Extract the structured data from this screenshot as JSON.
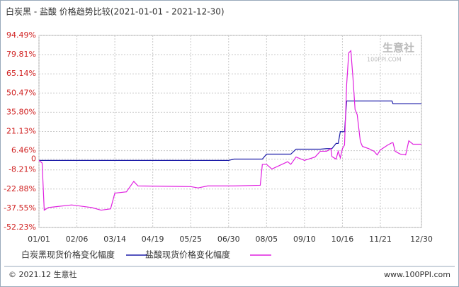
{
  "chart_data": {
    "type": "line",
    "title": "白炭黑 - 盐酸 价格趋势比较(2021-01-01 - 2021-12-30)",
    "x": [
      "01/01",
      "01/04",
      "01/06",
      "01/10",
      "02/01",
      "02/20",
      "03/01",
      "03/10",
      "03/14",
      "03/25",
      "04/01",
      "04/05",
      "05/25",
      "06/01",
      "06/10",
      "06/30",
      "07/05",
      "07/30",
      "08/01",
      "08/05",
      "08/10",
      "08/25",
      "08/28",
      "09/02",
      "09/10",
      "09/20",
      "09/25",
      "10/01",
      "10/05",
      "10/06",
      "10/10",
      "10/12",
      "10/14",
      "10/16",
      "10/18",
      "10/20",
      "10/22",
      "10/24",
      "10/26",
      "10/28",
      "10/30",
      "11/02",
      "11/04",
      "11/10",
      "11/15",
      "11/18",
      "11/21",
      "11/28",
      "12/02",
      "12/03",
      "12/05",
      "12/10",
      "12/15",
      "12/18",
      "12/22",
      "12/30"
    ],
    "series": [
      {
        "name": "白炭黑现货价格变化幅度",
        "color": "#1c1ca8",
        "values": [
          -1,
          -1,
          -1,
          -1,
          -1,
          -1,
          -1,
          -1,
          -1,
          -1,
          -1,
          -1,
          -1,
          -1,
          -1,
          -1,
          0,
          0,
          0,
          3.8,
          3.8,
          3.8,
          3.8,
          7.6,
          7.6,
          7.6,
          7.6,
          8,
          8,
          8,
          12,
          12,
          21,
          21,
          21,
          44.4,
          44.4,
          44.4,
          44.4,
          44.4,
          44.4,
          44.4,
          44.4,
          44.4,
          44.4,
          44.4,
          44.4,
          44.4,
          44.4,
          42.2,
          42.2,
          42.2,
          42.2,
          42.2,
          42.2,
          42.2
        ]
      },
      {
        "name": "盐酸现货价格变化幅度",
        "color": "#e020e0",
        "values": [
          -1,
          -3,
          -39,
          -37,
          -35,
          -37,
          -39,
          -38,
          -26,
          -25,
          -17,
          -20.5,
          -21,
          -22,
          -20.5,
          -20.5,
          -20.5,
          -20,
          -4,
          -4,
          -7.6,
          -2,
          -4,
          1.6,
          -1,
          1.6,
          6,
          6,
          8,
          2,
          0,
          6,
          1,
          8,
          10.8,
          56.8,
          81.2,
          82.8,
          62,
          37.9,
          34,
          13.5,
          9.7,
          8,
          6,
          3.2,
          7,
          10.8,
          12.5,
          12.5,
          6,
          3.8,
          3.2,
          14,
          11.4,
          11.4
        ]
      }
    ],
    "xlim": [
      "01/01",
      "12/30"
    ],
    "xticks": [
      "01/01",
      "02/06",
      "03/14",
      "04/19",
      "05/25",
      "06/30",
      "08/05",
      "09/10",
      "10/16",
      "11/21",
      "12/30"
    ],
    "ylim": [
      -52.23,
      94.49
    ],
    "yticks": [
      {
        "value": -52.23,
        "label": "-52.23%"
      },
      {
        "value": -37.55,
        "label": "-37.55%"
      },
      {
        "value": -22.88,
        "label": "-22.88%"
      },
      {
        "value": -8.21,
        "label": "-8.21%"
      },
      0,
      {
        "value": 6.46,
        "label": "6.46%"
      },
      {
        "value": 21.13,
        "label": "21.13%"
      },
      {
        "value": 35.8,
        "label": "35.80%"
      },
      {
        "value": 50.47,
        "label": "50.47%"
      },
      {
        "value": 65.14,
        "label": "65.14%"
      },
      {
        "value": 79.81,
        "label": "79.81%"
      },
      {
        "value": 94.49,
        "label": "94.49%"
      }
    ],
    "grid": true,
    "watermark": {
      "name": "生意社",
      "site": "100PPI.COM"
    }
  },
  "footer": {
    "left": "© 2021.12 生意社",
    "right": "www.100PPI.com"
  }
}
